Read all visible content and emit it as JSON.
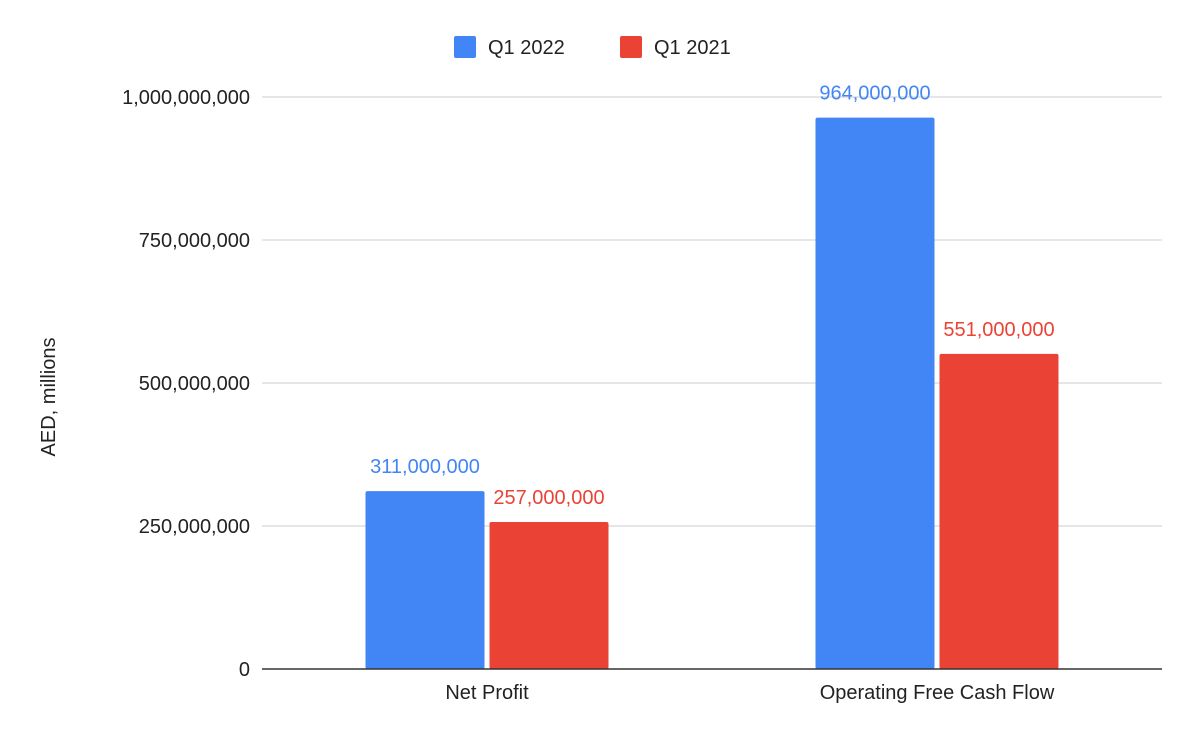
{
  "chart_data": {
    "type": "bar",
    "title": "",
    "xlabel": "",
    "ylabel": "AED, millions",
    "categories": [
      "Net Profit",
      "Operating Free Cash Flow"
    ],
    "series": [
      {
        "name": "Q1 2022",
        "color": "#4285f4",
        "values": [
          311000000,
          964000000
        ],
        "labels": [
          "311,000,000",
          "964,000,000"
        ]
      },
      {
        "name": "Q1 2021",
        "color": "#ea4335",
        "values": [
          257000000,
          551000000
        ],
        "labels": [
          "257,000,000",
          "551,000,000"
        ]
      }
    ],
    "ylim": [
      0,
      1000000000
    ],
    "yticks": [
      0,
      250000000,
      500000000,
      750000000,
      1000000000
    ],
    "ytick_labels": [
      "0",
      "250,000,000",
      "500,000,000",
      "750,000,000",
      "1,000,000,000"
    ],
    "grid": true,
    "legend_position": "top-center"
  }
}
